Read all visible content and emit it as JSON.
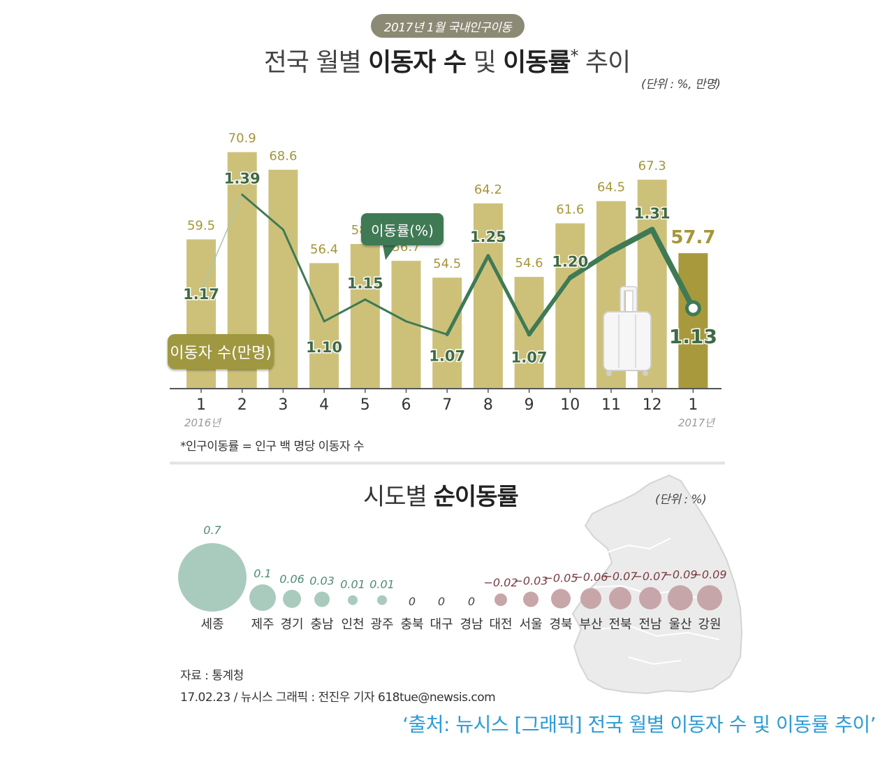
{
  "header": {
    "badge": "2017년 1월 국내인구이동",
    "title_part1": "전국 월별 ",
    "title_bold1": "이동자 수",
    "title_part2": " 및 ",
    "title_bold2": "이동률",
    "title_star": "*",
    "title_part3": " 추이",
    "unit": "(단위 : %, 만명)"
  },
  "chart_data": [
    {
      "type": "bar",
      "categories": [
        "1",
        "2",
        "3",
        "4",
        "5",
        "6",
        "7",
        "8",
        "9",
        "10",
        "11",
        "12",
        "1"
      ],
      "year_labels": {
        "start": "2016년",
        "end": "2017년"
      },
      "series": [
        {
          "name": "이동자 수(만명)",
          "values": [
            59.5,
            70.9,
            68.6,
            56.4,
            58.9,
            56.7,
            54.5,
            64.2,
            54.6,
            61.6,
            64.5,
            67.3,
            57.7
          ],
          "value_labels": [
            "59.5",
            "70.9",
            "68.6",
            "56.4",
            "58.9",
            "56.7",
            "54.5",
            "64.2",
            "54.6",
            "61.6",
            "64.5",
            "67.3",
            "57.7"
          ]
        },
        {
          "name": "이동률(%)",
          "type": "line",
          "values": [
            1.17,
            1.39,
            1.31,
            1.1,
            1.15,
            1.1,
            1.07,
            1.25,
            1.07,
            1.2,
            1.26,
            1.31,
            1.13
          ],
          "labels": [
            "1.17",
            "1.39",
            "",
            "1.10",
            "1.15",
            "",
            "1.07",
            "1.25",
            "1.07",
            "1.20",
            "",
            "1.31",
            "1.13"
          ]
        }
      ],
      "colors": {
        "bar": "#cdc17a",
        "bar_highlight": "#a89a3c",
        "bar_label": "#a4963a",
        "line": "#3f7a55",
        "line_label": "#3f6a45"
      }
    },
    {
      "type": "bubble",
      "title": "시도별 순이동률",
      "unit": "(단위 : %)",
      "categories": [
        "세종",
        "제주",
        "경기",
        "충남",
        "인천",
        "광주",
        "충북",
        "대구",
        "경남",
        "대전",
        "서울",
        "경북",
        "부산",
        "전북",
        "전남",
        "울산",
        "강원"
      ],
      "values": [
        0.7,
        0.1,
        0.06,
        0.03,
        0.01,
        0.01,
        0,
        0,
        0,
        -0.02,
        -0.03,
        -0.05,
        -0.06,
        -0.07,
        -0.07,
        -0.09,
        -0.09
      ],
      "value_labels": [
        "0.7",
        "0.1",
        "0.06",
        "0.03",
        "0.01",
        "0.01",
        "0",
        "0",
        "0",
        "−0.02",
        "−0.03",
        "−0.05",
        "−0.06",
        "−0.07",
        "−0.07",
        "−0.09",
        "−0.09"
      ],
      "colors": {
        "positive": "#a9cbbd",
        "positive_label": "#4e8c73",
        "negative": "#c7a6a9",
        "negative_label": "#7a3c42",
        "zero_label": "#444444"
      }
    }
  ],
  "badges": {
    "line_label": "이동률(%)",
    "bar_label": "이동자 수(만명)"
  },
  "footnote": "*인구이동률 = 인구 백 명당 이동자 수",
  "subchart": {
    "title_part1": "시도별 ",
    "title_bold": "순이동률",
    "unit": "(단위 : %)"
  },
  "source": {
    "line1": "자료 : 통계청",
    "line2": "17.02.23 / 뉴시스 그래픽 : 전진우 기자 618tue@newsis.com"
  },
  "caption": "‘출처: 뉴시스 [그래픽] 전국 월별 이동자 수 및 이동률 추이’"
}
